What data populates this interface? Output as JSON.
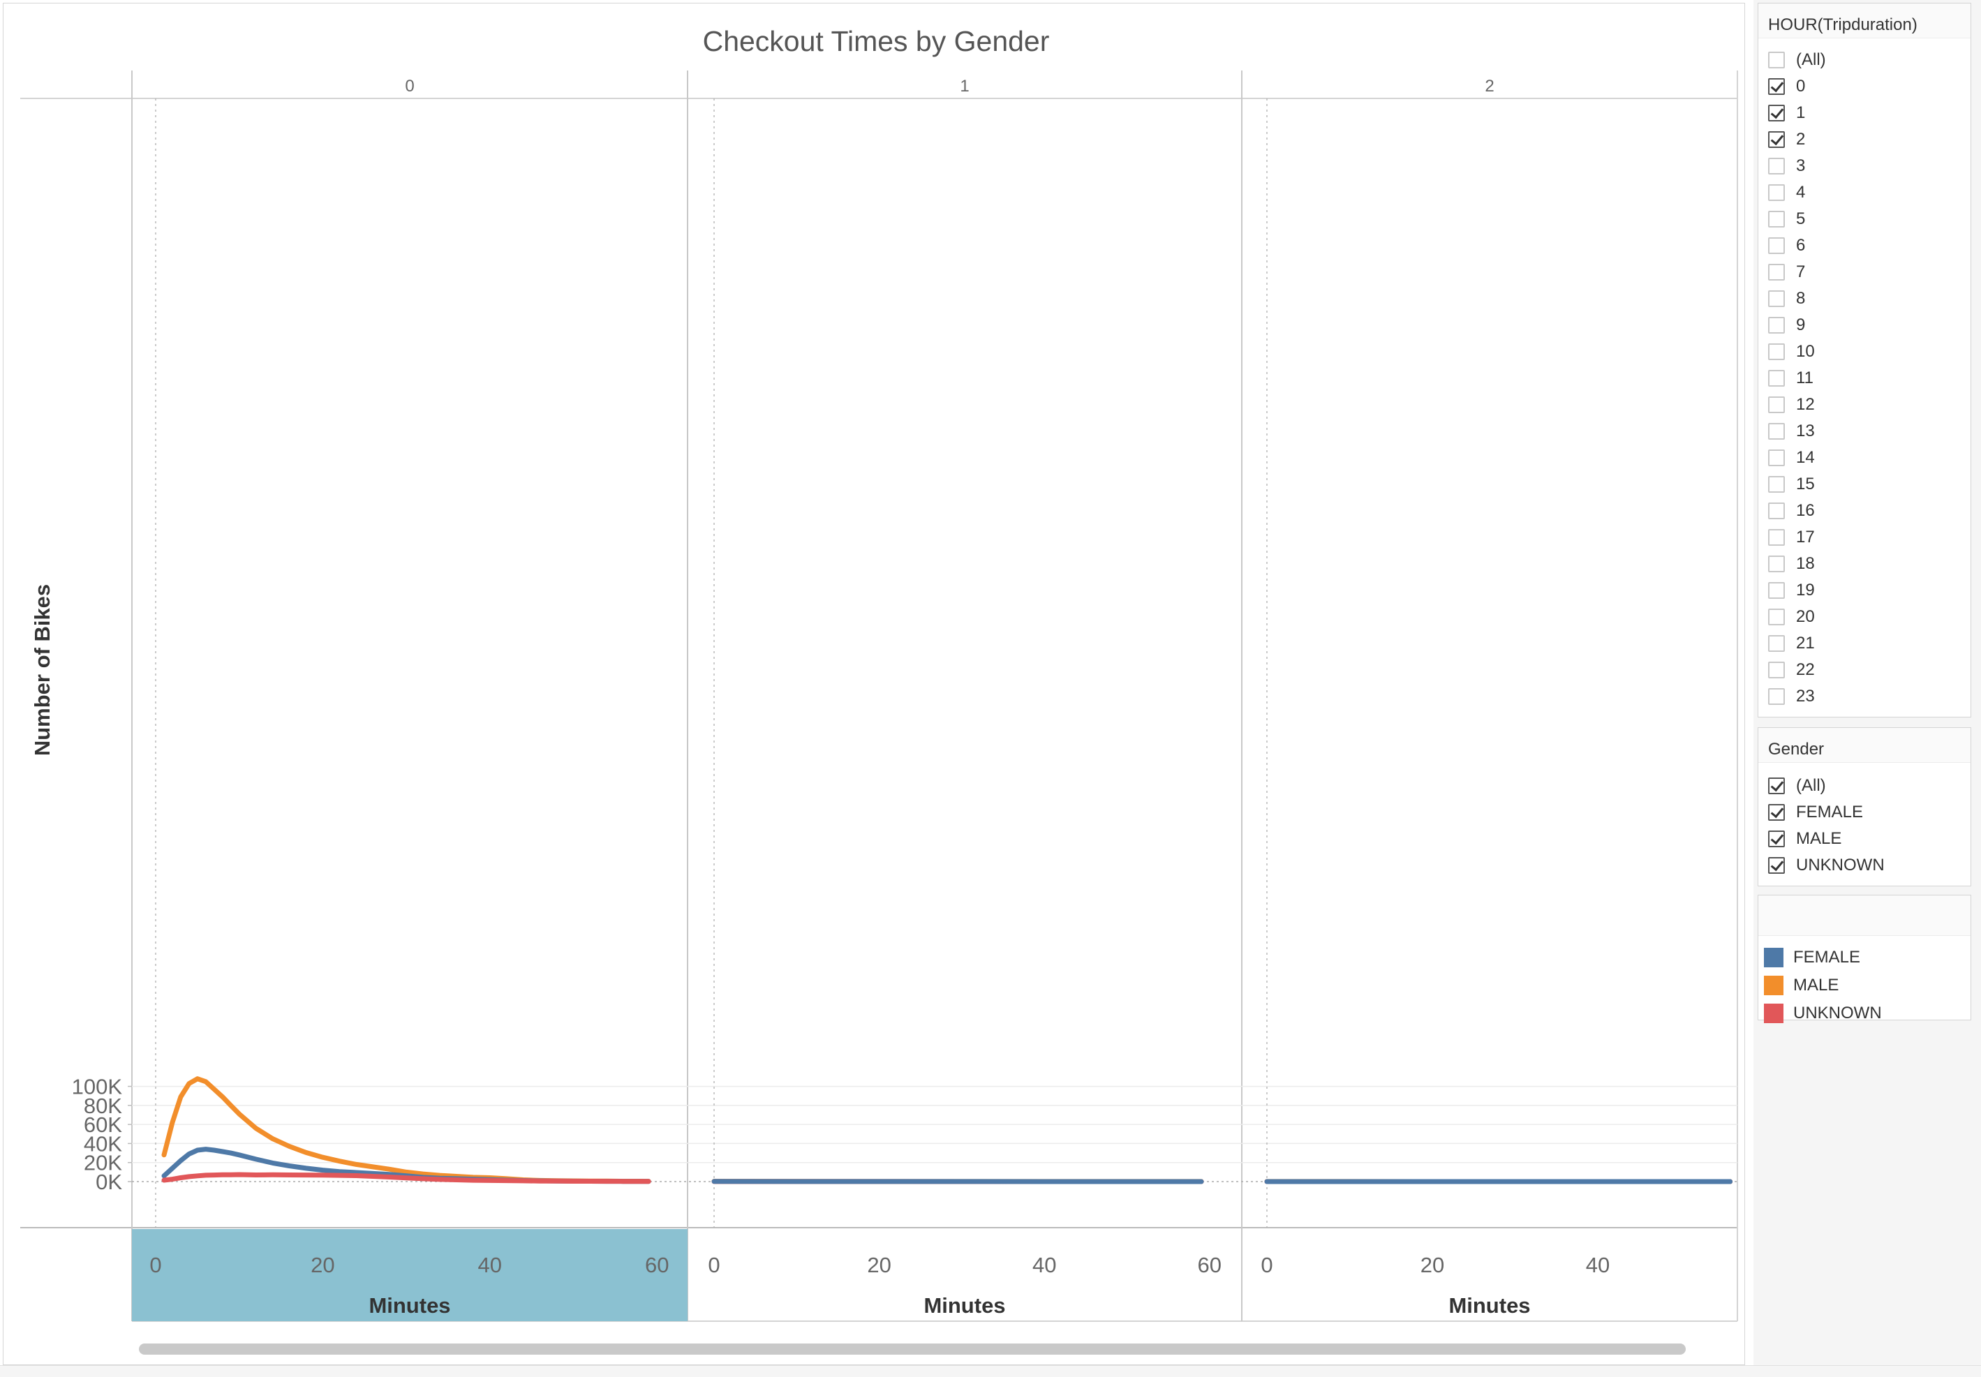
{
  "chart_data": {
    "type": "line",
    "title": "Checkout Times by Gender",
    "ylabel": "Number of Bikes",
    "xlabel": "Minutes",
    "ylim": [
      0,
      110000
    ],
    "yticks": [
      "0K",
      "20K",
      "40K",
      "60K",
      "80K",
      "100K"
    ],
    "yvalues": [
      0,
      20000,
      40000,
      60000,
      80000,
      100000
    ],
    "panes": [
      {
        "label": "0",
        "xlim": [
          0,
          60
        ],
        "xticks": [
          "0",
          "20",
          "40",
          "60"
        ],
        "xvalues": [
          0,
          20,
          40,
          60
        ],
        "series": [
          {
            "name": "MALE",
            "color": "#F28E2B",
            "x": [
              1,
              2,
              3,
              4,
              5,
              6,
              7,
              8,
              9,
              10,
              12,
              14,
              16,
              18,
              20,
              22,
              24,
              26,
              28,
              30,
              32,
              34,
              36,
              38,
              40,
              42,
              44,
              46,
              48,
              50,
              52,
              54,
              56,
              58,
              59
            ],
            "y": [
              28000,
              62000,
              89000,
              103000,
              108000,
              105000,
              97000,
              89000,
              80000,
              71000,
              56000,
              45000,
              37000,
              30500,
              25500,
              21500,
              18000,
              15500,
              13000,
              10000,
              8000,
              6500,
              5500,
              4500,
              4000,
              3000,
              1800,
              1200,
              900,
              700,
              600,
              500,
              400,
              350,
              300
            ]
          },
          {
            "name": "FEMALE",
            "color": "#4E79A7",
            "x": [
              1,
              2,
              3,
              4,
              5,
              6,
              7,
              8,
              9,
              10,
              12,
              14,
              16,
              18,
              20,
              22,
              24,
              26,
              28,
              30,
              32,
              34,
              36,
              38,
              40,
              42,
              44,
              46,
              48,
              50,
              52,
              54,
              56,
              58,
              59
            ],
            "y": [
              6000,
              14000,
              22000,
              29000,
              33000,
              34000,
              33000,
              31500,
              30000,
              28000,
              23500,
              19500,
              16500,
              14000,
              12000,
              10500,
              9500,
              8500,
              7500,
              6000,
              4500,
              3500,
              3000,
              2500,
              2000,
              1500,
              1100,
              800,
              600,
              450,
              350,
              300,
              250,
              200,
              150
            ]
          },
          {
            "name": "UNKNOWN",
            "color": "#E15759",
            "x": [
              1,
              2,
              3,
              4,
              5,
              6,
              7,
              8,
              9,
              10,
              12,
              14,
              16,
              18,
              20,
              22,
              24,
              26,
              28,
              30,
              32,
              34,
              36,
              38,
              40,
              42,
              44,
              46,
              48,
              50,
              52,
              54,
              56,
              58,
              59
            ],
            "y": [
              1500,
              2500,
              4000,
              5200,
              6000,
              6700,
              6900,
              7100,
              7200,
              7300,
              7000,
              7100,
              7000,
              6900,
              6800,
              6500,
              6200,
              5500,
              4800,
              3800,
              3000,
              2300,
              1800,
              1400,
              1200,
              1000,
              800,
              600,
              500,
              400,
              350,
              300,
              250,
              200,
              150
            ]
          }
        ]
      },
      {
        "label": "1",
        "xlim": [
          0,
          60
        ],
        "xticks": [
          "0",
          "20",
          "40",
          "60"
        ],
        "xvalues": [
          0,
          20,
          40,
          60
        ],
        "series": [
          {
            "name": "MALE",
            "color": "#F28E2B",
            "x": [
              0,
              10,
              20,
              30,
              40,
              50,
              59
            ],
            "y": [
              300,
              150,
              100,
              80,
              60,
              50,
              40
            ]
          },
          {
            "name": "UNKNOWN",
            "color": "#E15759",
            "x": [
              0,
              10,
              20,
              30,
              40,
              50,
              59
            ],
            "y": [
              100,
              60,
              40,
              30,
              25,
              20,
              15
            ]
          },
          {
            "name": "FEMALE",
            "color": "#4E79A7",
            "x": [
              0,
              10,
              20,
              30,
              40,
              50,
              59
            ],
            "y": [
              150,
              80,
              60,
              40,
              30,
              25,
              20
            ]
          }
        ]
      },
      {
        "label": "2",
        "xlim": [
          0,
          56
        ],
        "xticks": [
          "0",
          "20",
          "40"
        ],
        "xvalues": [
          0,
          20,
          40
        ],
        "series": [
          {
            "name": "MALE",
            "color": "#F28E2B",
            "x": [
              0,
              10,
              20,
              30,
              40,
              50,
              56
            ],
            "y": [
              60,
              40,
              30,
              25,
              20,
              15,
              10
            ]
          },
          {
            "name": "UNKNOWN",
            "color": "#E15759",
            "x": [
              0,
              10,
              20,
              30,
              40,
              50,
              56
            ],
            "y": [
              20,
              15,
              10,
              10,
              8,
              6,
              5
            ]
          },
          {
            "name": "FEMALE",
            "color": "#4E79A7",
            "x": [
              0,
              10,
              20,
              30,
              40,
              50,
              56
            ],
            "y": [
              30,
              25,
              20,
              15,
              12,
              10,
              8
            ]
          }
        ]
      }
    ],
    "highlighted_pane": "0",
    "highlight_color": "#8BC1D1",
    "grid": true
  },
  "filters": {
    "hour": {
      "title": "HOUR(Tripduration)",
      "options": [
        {
          "label": "(All)",
          "checked": false
        },
        {
          "label": "0",
          "checked": true
        },
        {
          "label": "1",
          "checked": true
        },
        {
          "label": "2",
          "checked": true
        },
        {
          "label": "3",
          "checked": false
        },
        {
          "label": "4",
          "checked": false
        },
        {
          "label": "5",
          "checked": false
        },
        {
          "label": "6",
          "checked": false
        },
        {
          "label": "7",
          "checked": false
        },
        {
          "label": "8",
          "checked": false
        },
        {
          "label": "9",
          "checked": false
        },
        {
          "label": "10",
          "checked": false
        },
        {
          "label": "11",
          "checked": false
        },
        {
          "label": "12",
          "checked": false
        },
        {
          "label": "13",
          "checked": false
        },
        {
          "label": "14",
          "checked": false
        },
        {
          "label": "15",
          "checked": false
        },
        {
          "label": "16",
          "checked": false
        },
        {
          "label": "17",
          "checked": false
        },
        {
          "label": "18",
          "checked": false
        },
        {
          "label": "19",
          "checked": false
        },
        {
          "label": "20",
          "checked": false
        },
        {
          "label": "21",
          "checked": false
        },
        {
          "label": "22",
          "checked": false
        },
        {
          "label": "23",
          "checked": false
        }
      ]
    },
    "gender": {
      "title": "Gender",
      "options": [
        {
          "label": "(All)",
          "checked": true
        },
        {
          "label": "FEMALE",
          "checked": true
        },
        {
          "label": "MALE",
          "checked": true
        },
        {
          "label": "UNKNOWN",
          "checked": true
        }
      ]
    }
  },
  "legend": {
    "items": [
      {
        "label": "FEMALE",
        "color": "#4E79A7"
      },
      {
        "label": "MALE",
        "color": "#F28E2B"
      },
      {
        "label": "UNKNOWN",
        "color": "#E15759"
      }
    ]
  }
}
